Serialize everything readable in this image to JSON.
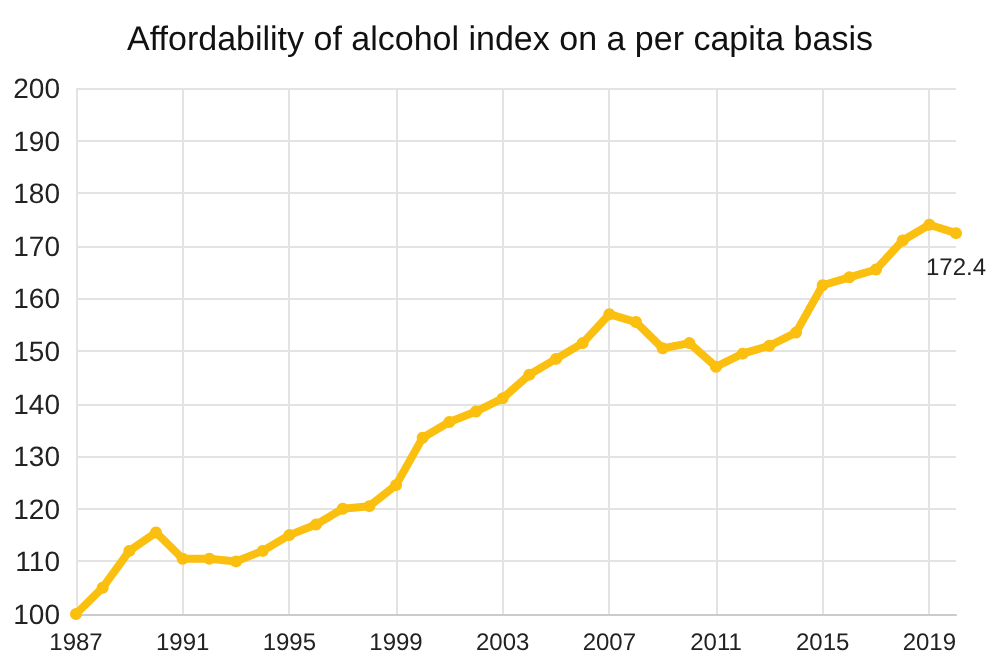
{
  "chart_data": {
    "type": "line",
    "title": "Affordability of alcohol index on a per capita basis",
    "x": [
      1987,
      1988,
      1989,
      1990,
      1991,
      1992,
      1993,
      1994,
      1995,
      1996,
      1997,
      1998,
      1999,
      2000,
      2001,
      2002,
      2003,
      2004,
      2005,
      2006,
      2007,
      2008,
      2009,
      2010,
      2011,
      2012,
      2013,
      2014,
      2015,
      2016,
      2017,
      2018,
      2019,
      2020
    ],
    "series": [
      {
        "color": "#fbbf0f",
        "values": [
          100,
          105,
          112,
          115.5,
          110.5,
          110.5,
          110,
          112,
          115,
          117,
          120,
          120.5,
          124.5,
          133.5,
          136.5,
          138.5,
          141,
          145.5,
          148.5,
          151.5,
          157,
          155.5,
          150.5,
          151.5,
          147,
          149.5,
          151,
          153.5,
          162.5,
          164,
          165.5,
          171,
          174,
          172.4
        ],
        "value_labels": [
          null,
          null,
          null,
          null,
          null,
          null,
          null,
          null,
          null,
          null,
          null,
          null,
          null,
          null,
          null,
          null,
          null,
          null,
          null,
          null,
          null,
          null,
          null,
          null,
          null,
          null,
          null,
          null,
          null,
          null,
          null,
          null,
          null,
          "172.4"
        ]
      }
    ],
    "xlim": [
      1987,
      2020
    ],
    "xticks": [
      1987,
      1991,
      1995,
      1999,
      2003,
      2007,
      2011,
      2015,
      2019
    ],
    "ylim": [
      100,
      200
    ],
    "yticks": [
      100,
      110,
      120,
      130,
      140,
      150,
      160,
      170,
      180,
      190,
      200
    ],
    "grid": true,
    "marker": "circle",
    "line_style": "solid"
  }
}
